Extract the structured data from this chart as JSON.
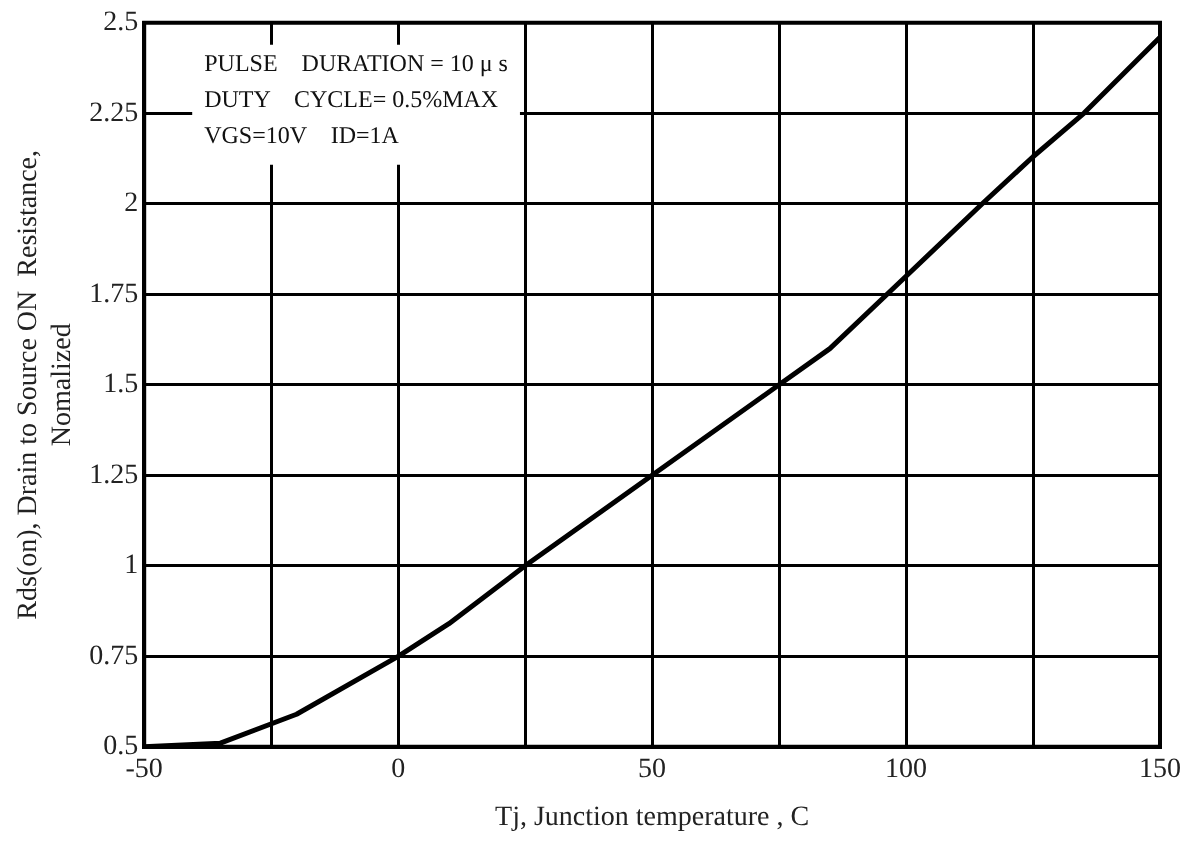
{
  "chart_data": {
    "type": "line",
    "xlabel": "Tj, Junction temperature , C",
    "ylabel": "Rds(on), Drain to Source ON  Resistance, Nomalized",
    "annotations": [
      "PULSE    DURATION = 10 μ s",
      "DUTY    CYCLE= 0.5%MAX",
      "VGS=10V    ID=1A"
    ],
    "x": [
      -50,
      -35,
      -20,
      0,
      10,
      25,
      50,
      75,
      85,
      100,
      115,
      125,
      135,
      150
    ],
    "series": [
      {
        "color": "#000000",
        "values": [
          0.5,
          0.51,
          0.59,
          0.75,
          0.84,
          1.0,
          1.25,
          1.5,
          1.6,
          1.8,
          2.0,
          2.13,
          2.25,
          2.46
        ]
      }
    ],
    "xlim": [
      -50,
      150
    ],
    "xticks": [
      -50,
      {
        "value": -25,
        "label": null
      },
      0,
      {
        "value": 25,
        "label": null
      },
      50,
      {
        "value": 75,
        "label": null
      },
      100,
      {
        "value": 125,
        "label": null
      },
      150
    ],
    "ylim": [
      0.5,
      2.5
    ],
    "yticks": [
      0.5,
      0.75,
      1,
      1.25,
      1.5,
      1.75,
      2,
      2.25,
      2.5
    ],
    "grid": true,
    "legend": false,
    "marker": "none",
    "line_style": "solid"
  }
}
